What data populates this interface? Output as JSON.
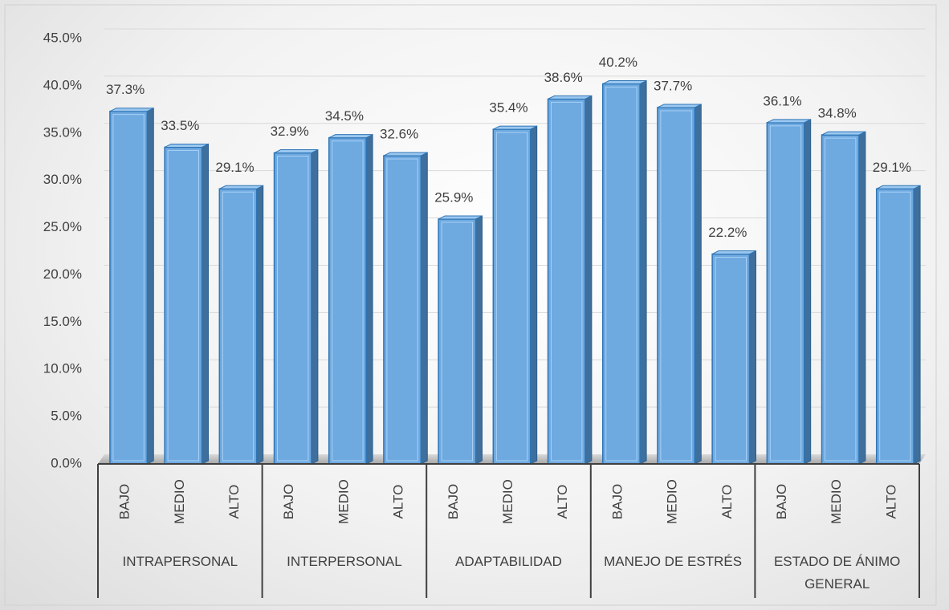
{
  "chart_data": {
    "type": "bar",
    "groups": [
      "INTRAPERSONAL",
      "INTERPERSONAL",
      "ADAPTABILIDAD",
      "MANEJO DE ESTRÉS",
      "ESTADO DE ÁNIMO GENERAL"
    ],
    "categories": [
      "BAJO",
      "MEDIO",
      "ALTO",
      "BAJO",
      "MEDIO",
      "ALTO",
      "BAJO",
      "MEDIO",
      "ALTO",
      "BAJO",
      "MEDIO",
      "ALTO",
      "BAJO",
      "MEDIO",
      "ALTO"
    ],
    "values": [
      37.3,
      33.5,
      29.1,
      32.9,
      34.5,
      32.6,
      25.9,
      35.4,
      38.6,
      40.2,
      37.7,
      22.2,
      36.1,
      34.8,
      29.1
    ],
    "value_labels": [
      "37.3%",
      "33.5%",
      "29.1%",
      "32.9%",
      "34.5%",
      "32.6%",
      "25.9%",
      "35.4%",
      "38.6%",
      "40.2%",
      "37.7%",
      "22.2%",
      "36.1%",
      "34.8%",
      "29.1%"
    ],
    "color": "#6ea9e0",
    "ylim": [
      0,
      45
    ],
    "yticks": [
      {
        "value": 0,
        "label": "0.0%"
      },
      {
        "value": 5,
        "label": "5.0%"
      },
      {
        "value": 10,
        "label": "10.0%"
      },
      {
        "value": 15,
        "label": "15.0%"
      },
      {
        "value": 20,
        "label": "20.0%"
      },
      {
        "value": 25,
        "label": "25.0%"
      },
      {
        "value": 30,
        "label": "30.0%"
      },
      {
        "value": 35,
        "label": "35.0%"
      },
      {
        "value": 40,
        "label": "40.0%"
      },
      {
        "value": 45,
        "label": "45.0%"
      }
    ],
    "grid": true
  }
}
